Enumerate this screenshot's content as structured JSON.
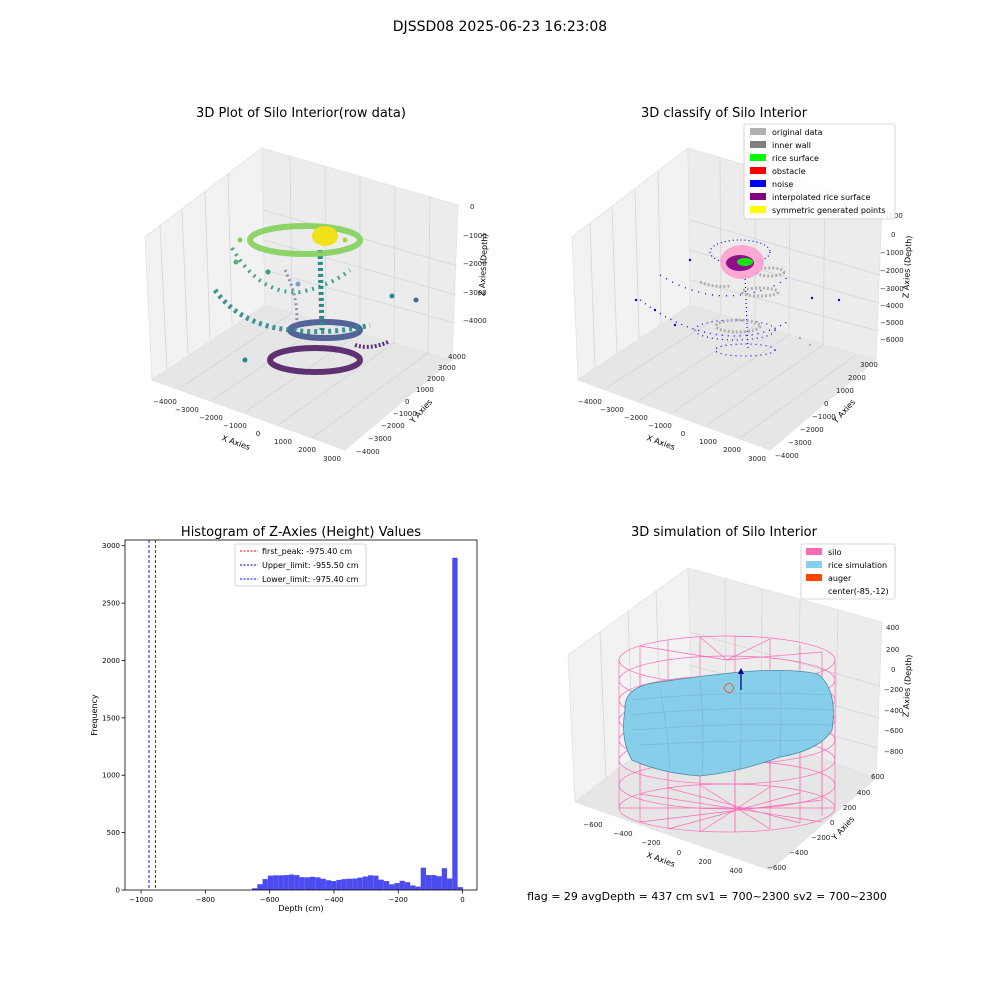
{
  "suptitle": "DJSSD08 2025-06-23 16:23:08",
  "footer_text": "flag = 29  avgDepth = 437 cm  sv1 = 700~2300  sv2 = 700~2300",
  "colors": {
    "hist_bar": "#4b4bef",
    "first_peak": "#ff0000",
    "upper_limit": "#00008b",
    "lower_limit": "#0000ff",
    "silo": "#ff69b4",
    "rice": "#87ceeb",
    "auger": "#ff4500",
    "original": "#b0b0b0",
    "inner_wall": "#808080",
    "rice_surface": "#00ff00",
    "obstacle": "#ff0000",
    "noise": "#0000ff",
    "interpolated": "#800080",
    "symmetric": "#ffff00"
  },
  "chart_data": [
    {
      "type": "scatter",
      "title": "3D Plot of Silo Interior(row data)",
      "xlabel": "X Axies",
      "ylabel": "Y Axies",
      "zlabel": "Z Axies (Depth)",
      "x_ticks": [
        "−4000",
        "−3000",
        "−2000",
        "−1000",
        "0",
        "1000",
        "2000",
        "3000"
      ],
      "y_ticks": [
        "−4000",
        "−3000",
        "−2000",
        "−1000",
        "0",
        "1000",
        "2000",
        "3000",
        "4000"
      ],
      "z_ticks": [
        "0",
        "−1000",
        "−2000",
        "−3000",
        "−4000"
      ],
      "colormap": "viridis"
    },
    {
      "type": "scatter",
      "title": "3D classify of Silo Interior",
      "xlabel": "X Axies",
      "ylabel": "Y Axies",
      "zlabel": "Z Axies (Depth)",
      "x_ticks": [
        "−4000",
        "−3000",
        "−2000",
        "−1000",
        "0",
        "1000",
        "2000",
        "3000"
      ],
      "y_ticks": [
        "−4000",
        "−3000",
        "−2000",
        "−1000",
        "0",
        "1000",
        "2000",
        "3000"
      ],
      "z_ticks": [
        "1000",
        "0",
        "−1000",
        "−2000",
        "−3000",
        "−4000",
        "−5000",
        "−6000"
      ],
      "legend": [
        "original data",
        "inner wall",
        "rice surface",
        "obstacle",
        "noise",
        "interpolated rice surface",
        "symmetric generated points"
      ]
    },
    {
      "type": "bar",
      "title": "Histogram of Z-Axies (Height) Values",
      "xlabel": "Depth (cm)",
      "ylabel": "Frequency",
      "xlim": [
        -1050,
        45
      ],
      "ylim": [
        0,
        3050
      ],
      "x_ticks": [
        -1000,
        -800,
        -600,
        -400,
        -200,
        0
      ],
      "x_tick_labels": [
        "−1000",
        "−800",
        "−600",
        "−400",
        "−200",
        "0"
      ],
      "y_ticks": [
        0,
        500,
        1000,
        1500,
        2000,
        2500,
        3000
      ],
      "bin_width": 16.4,
      "bins": [
        {
          "x": -655,
          "v": 15
        },
        {
          "x": -638.6,
          "v": 50
        },
        {
          "x": -622.2,
          "v": 95
        },
        {
          "x": -605.8,
          "v": 125
        },
        {
          "x": -589.4,
          "v": 128
        },
        {
          "x": -573,
          "v": 128
        },
        {
          "x": -556.6,
          "v": 130
        },
        {
          "x": -540.2,
          "v": 135
        },
        {
          "x": -523.8,
          "v": 130
        },
        {
          "x": -507.4,
          "v": 112
        },
        {
          "x": -491,
          "v": 110
        },
        {
          "x": -474.6,
          "v": 115
        },
        {
          "x": -458.2,
          "v": 110
        },
        {
          "x": -441.8,
          "v": 98
        },
        {
          "x": -425.4,
          "v": 85
        },
        {
          "x": -409,
          "v": 78
        },
        {
          "x": -392.6,
          "v": 88
        },
        {
          "x": -376.2,
          "v": 95
        },
        {
          "x": -359.8,
          "v": 98
        },
        {
          "x": -343.4,
          "v": 100
        },
        {
          "x": -327,
          "v": 108
        },
        {
          "x": -310.6,
          "v": 118
        },
        {
          "x": -294.2,
          "v": 128
        },
        {
          "x": -277.8,
          "v": 125
        },
        {
          "x": -261.4,
          "v": 90
        },
        {
          "x": -245,
          "v": 78
        },
        {
          "x": -228.6,
          "v": 50
        },
        {
          "x": -212.2,
          "v": 60
        },
        {
          "x": -195.8,
          "v": 80
        },
        {
          "x": -179.4,
          "v": 68
        },
        {
          "x": -163,
          "v": 40
        },
        {
          "x": -146.6,
          "v": 30
        },
        {
          "x": -130.2,
          "v": 195
        },
        {
          "x": -113.8,
          "v": 130
        },
        {
          "x": -97.4,
          "v": 130
        },
        {
          "x": -81,
          "v": 120
        },
        {
          "x": -64.6,
          "v": 190
        },
        {
          "x": -48.2,
          "v": 100
        },
        {
          "x": -31.8,
          "v": 2895
        },
        {
          "x": -15.4,
          "v": 25
        }
      ],
      "vlines": [
        {
          "label": "first_peak: -975.40 cm",
          "x": -975.4,
          "color": "#ff0000"
        },
        {
          "label": "Upper_limit: -955.50 cm",
          "x": -955.5,
          "color": "#00008b"
        },
        {
          "label": "Lower_limit: -975.40 cm",
          "x": -975.4,
          "color": "#0000ff"
        }
      ]
    },
    {
      "type": "surface",
      "title": "3D simulation of Silo Interior",
      "xlabel": "X Axies",
      "ylabel": "Y Axies",
      "zlabel": "Z Axies (Depth)",
      "x_ticks": [
        "−600",
        "−400",
        "−200",
        "0",
        "200",
        "400"
      ],
      "y_ticks": [
        "−600",
        "−400",
        "−200",
        "0",
        "200",
        "400",
        "600"
      ],
      "z_ticks": [
        "400",
        "200",
        "0",
        "−200",
        "−400",
        "−600",
        "−800"
      ],
      "legend": [
        "silo",
        "rice simulation",
        "auger",
        "center(-85,-12)"
      ]
    }
  ]
}
